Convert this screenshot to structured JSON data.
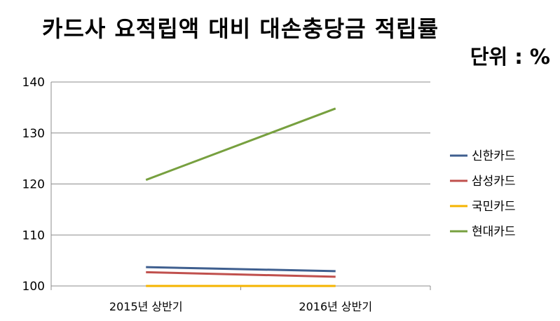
{
  "chart_data": {
    "type": "line",
    "title": "카드사 요적립액 대비 대손충당금 적립률",
    "unit_label": "단위 : %",
    "categories": [
      "2015년 상반기",
      "2016년 상반기"
    ],
    "ylim": [
      100,
      140
    ],
    "yticks": [
      "100",
      "110",
      "120",
      "130",
      "140"
    ],
    "grid": true,
    "legend_position": "right",
    "series": [
      {
        "name": "신한카드",
        "values": [
          103.7,
          102.9
        ],
        "color": "#3f5f8f"
      },
      {
        "name": "삼성카드",
        "values": [
          102.7,
          101.8
        ],
        "color": "#c0504d"
      },
      {
        "name": "국민카드",
        "values": [
          100.0,
          100.0
        ],
        "color": "#f5b400"
      },
      {
        "name": "현대카드",
        "values": [
          120.8,
          134.8
        ],
        "color": "#77a03f"
      }
    ]
  }
}
